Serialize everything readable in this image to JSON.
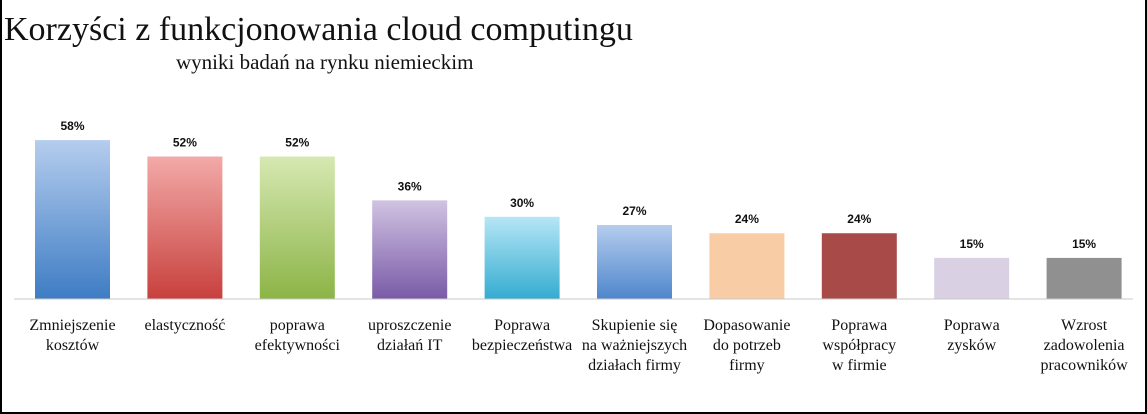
{
  "chart_data": {
    "type": "bar",
    "title": "Korzyści z funkcjonowania cloud computingu",
    "subtitle": "wyniki badań na rynku niemieckim",
    "xlabel": "",
    "ylabel": "",
    "ylim": [
      0,
      60
    ],
    "grid": false,
    "legend": "none",
    "categories": [
      [
        "Zmniejszenie",
        "kosztów"
      ],
      [
        "elastyczność"
      ],
      [
        "poprawa",
        "efektywności"
      ],
      [
        "uproszczenie",
        "działań IT"
      ],
      [
        "Poprawa",
        "bezpieczeństwa"
      ],
      [
        "Skupienie się",
        "na ważniejszych",
        "działach firmy"
      ],
      [
        "Dopasowanie",
        "do potrzeb",
        "firmy"
      ],
      [
        "Poprawa",
        "współpracy",
        "w firmie"
      ],
      [
        "Poprawa",
        "zysków"
      ],
      [
        "Wzrost",
        "zadowolenia",
        "pracowników"
      ]
    ],
    "values": [
      58,
      52,
      52,
      36,
      30,
      27,
      24,
      24,
      15,
      15
    ],
    "value_labels": [
      "58%",
      "52%",
      "52%",
      "36%",
      "30%",
      "27%",
      "24%",
      "24%",
      "15%",
      "15%"
    ],
    "colors": [
      [
        "#b5cdee",
        "#3e7cc4"
      ],
      [
        "#f2aaa8",
        "#c8403d"
      ],
      [
        "#d6e8b2",
        "#8cb446"
      ],
      [
        "#d0c3e2",
        "#7a5aa8"
      ],
      [
        "#b6e6f6",
        "#34acd0"
      ],
      [
        "#b5cdee",
        "#4e86cc"
      ],
      [
        "#f8cda6",
        "#f8cda6"
      ],
      [
        "#a84b48",
        "#a84b48"
      ],
      [
        "#d9d0e4",
        "#d9d0e4"
      ],
      [
        "#909090",
        "#909090"
      ]
    ]
  }
}
